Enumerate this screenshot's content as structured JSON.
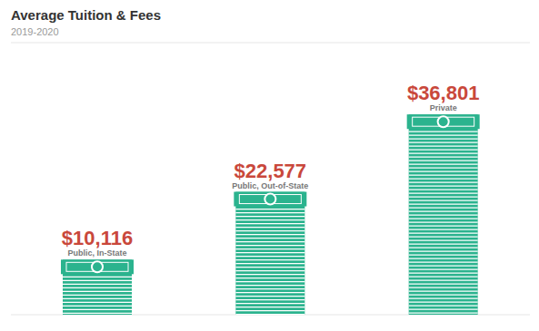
{
  "chart_data": {
    "type": "bar",
    "title": "Average Tuition & Fees",
    "subtitle": "2019-2020",
    "categories": [
      "Public, In-State",
      "Public, Out-of-State",
      "Private"
    ],
    "values": [
      10116,
      22577,
      36801
    ],
    "value_labels": [
      "$10,116",
      "$22,577",
      "$36,801"
    ],
    "color": "#2bb38e",
    "ylim": [
      0,
      50000
    ],
    "yticks": [
      0,
      5000,
      10000,
      15000,
      20000,
      25000,
      30000,
      35000,
      40000,
      45000,
      50000
    ],
    "grid": true,
    "data_labels": true,
    "tick_labels": false
  }
}
